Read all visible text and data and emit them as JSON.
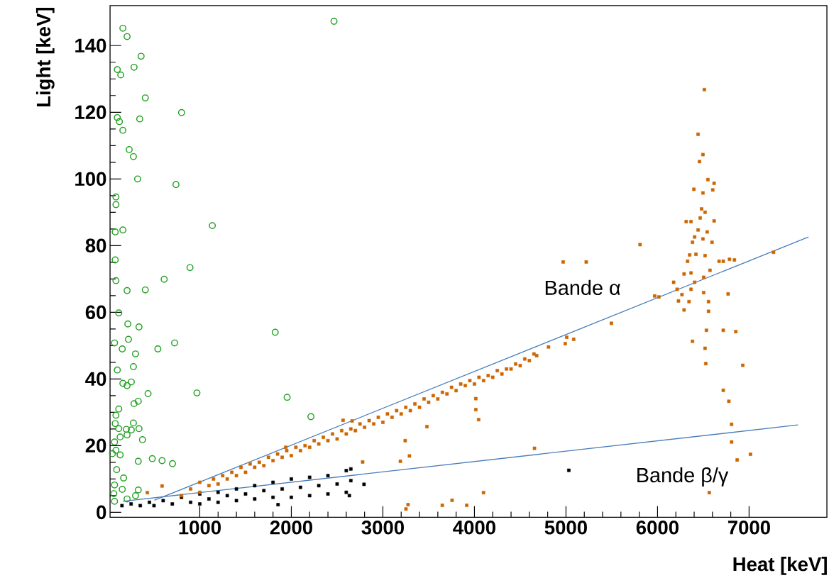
{
  "chart_data": {
    "type": "scatter",
    "xlabel": "Heat [keV]",
    "ylabel": "Light [keV]",
    "xlim": [
      20,
      7850
    ],
    "ylim": [
      -1.5,
      152
    ],
    "xticks": [
      1000,
      2000,
      3000,
      4000,
      5000,
      6000,
      7000
    ],
    "yticks": [
      0,
      20,
      40,
      60,
      80,
      100,
      120,
      140
    ],
    "annotations": [
      "Bande α",
      "Bande β/γ"
    ],
    "series": [
      {
        "marker": "square",
        "color": "#000000",
        "x": [
          150,
          250,
          350,
          450,
          500,
          600,
          700,
          800,
          900,
          1000,
          1000,
          1100,
          1200,
          1200,
          1300,
          1400,
          1400,
          1500,
          1600,
          1600,
          1700,
          1800,
          1800,
          1900,
          2000,
          2000,
          2100,
          2200,
          2200,
          2300,
          2400,
          2400,
          2500,
          2600,
          2600,
          2650,
          2650,
          5031,
          2794,
          2634,
          1855
        ],
        "values": [
          2,
          2.5,
          2,
          3,
          2,
          3.5,
          2.5,
          4.5,
          3,
          5.5,
          2.5,
          4,
          6,
          3,
          5,
          7,
          3.5,
          5.5,
          8,
          4,
          6.5,
          9,
          4.5,
          7,
          10,
          4.5,
          7.5,
          10.5,
          5,
          8,
          11,
          5.5,
          8.5,
          12.5,
          6,
          9.5,
          13,
          12.6,
          8.4,
          5,
          2.3
        ]
      },
      {
        "marker": "square",
        "color": "#cc6600",
        "x": [
          800,
          900,
          1000,
          1000,
          1100,
          1150,
          1200,
          1250,
          1300,
          1350,
          1400,
          1450,
          1500,
          1550,
          1600,
          1650,
          1700,
          1750,
          1800,
          1850,
          1900,
          1950,
          2000,
          2050,
          2100,
          2150,
          2200,
          2250,
          2300,
          2350,
          2400,
          2450,
          2500,
          2550,
          2600,
          2650,
          2700,
          2750,
          2800,
          2850,
          2900,
          2950,
          3000,
          3050,
          3100,
          3150,
          3200,
          3250,
          3300,
          3350,
          3400,
          3450,
          3500,
          3550,
          3600,
          3650,
          3700,
          3750,
          3800,
          3850,
          3900,
          3950,
          4000,
          4050,
          4100,
          4150,
          4200,
          4250,
          4300,
          4350,
          4400,
          4450,
          4500,
          4550,
          4600,
          4650,
          4680,
          6511,
          6443,
          6496,
          6458,
          6550,
          6618,
          6397,
          6603,
          6496,
          6481,
          6519,
          6466,
          6618,
          6313,
          6443,
          6542,
          6405,
          6496,
          6595,
          5809,
          6382,
          6351,
          6420,
          6519,
          6786,
          6672,
          6328,
          6573,
          6290,
          6366,
          6504,
          6176,
          6405,
          6214,
          6366,
          6504,
          6771,
          5969,
          6267,
          6229,
          6344,
          6557,
          6290,
          6557,
          6534,
          6718,
          6855,
          6382,
          6519,
          6527,
          6931,
          6718,
          6779,
          6809,
          6809,
          6870,
          7015,
          6565,
          7267,
          6840,
          6718,
          4969,
          5221,
          5496,
          6015,
          6366,
          5008,
          5084,
          4992,
          4809,
          4046,
          4015,
          4015,
          3481,
          3244,
          4656,
          4099,
          3916,
          3756,
          3649,
          3252,
          588,
          427,
          3275,
          3191,
          3290,
          2779,
          2565,
          2664,
          1939
        ],
        "values": [
          5,
          7,
          6,
          9,
          8,
          10,
          8.5,
          11,
          10,
          12,
          11,
          13.5,
          12,
          14.5,
          13.5,
          15,
          14,
          16.5,
          15.5,
          17.5,
          16.5,
          18.5,
          17,
          19.5,
          18.5,
          20,
          19.5,
          21.5,
          20.5,
          22.5,
          21.5,
          23.5,
          22,
          24.5,
          23.5,
          25,
          24.5,
          26.5,
          25.5,
          27.5,
          26.5,
          28.5,
          27,
          29.5,
          28.5,
          30.5,
          29.5,
          31.5,
          30.5,
          32.5,
          31.5,
          34,
          33,
          35,
          34,
          36,
          35.5,
          37.5,
          36.5,
          38.5,
          38,
          39.5,
          38.5,
          40.5,
          39.5,
          41,
          40.5,
          42.5,
          41.5,
          43,
          43,
          44.5,
          44,
          46,
          45.5,
          47.5,
          47,
          126.8,
          113.4,
          107.3,
          105.2,
          99.8,
          98.7,
          96.9,
          96.7,
          95.8,
          91,
          90,
          88.3,
          87.4,
          87.2,
          84.7,
          84.1,
          82.6,
          82,
          81,
          80.3,
          81,
          77.2,
          77.4,
          77,
          75.9,
          75.3,
          75.3,
          72.6,
          71.5,
          71.8,
          70.5,
          69,
          69,
          66.9,
          66.9,
          65.9,
          65.5,
          64.9,
          65.3,
          63.4,
          63.2,
          63.2,
          60.7,
          60.3,
          54.6,
          54.6,
          54.2,
          51.3,
          49.2,
          44.6,
          44.1,
          36.6,
          33.3,
          26.4,
          21.1,
          15.7,
          17.4,
          5.9,
          78,
          75.7,
          75.3,
          75.1,
          75.1,
          56.7,
          64.6,
          87.2,
          52.5,
          51.9,
          50.6,
          49.6,
          27.8,
          30.8,
          34.1,
          25.7,
          21.5,
          19.2,
          5.9,
          2.1,
          3.6,
          2.1,
          1,
          7.9,
          5.9,
          2.3,
          15.3,
          16.9,
          15.1,
          27.6,
          27.4,
          19.5
        ]
      },
      {
        "marker": "circle",
        "color": "#22a022",
        "x": [
          160,
          206,
          359,
          282,
          99,
          137,
          405,
          801,
          344,
          99,
          122,
          160,
          229,
          275,
          321,
          740,
          84,
          84,
          1137,
          160,
          76,
          893,
          76,
          611,
          84,
          206,
          405,
          2466,
          115,
          214,
          336,
          1824,
          725,
          69,
          221,
          153,
          542,
          298,
          275,
          99,
          160,
          252,
          206,
          435,
          969,
          1954,
          282,
          328,
          115,
          84,
          2214,
          275,
          76,
          115,
          198,
          336,
          252,
          206,
          130,
          374,
          69,
          84,
          130,
          46,
          481,
          328,
          588,
          702,
          92,
          168,
          69,
          153,
          328,
          298,
          61,
          69,
          206
        ],
        "values": [
          145.2,
          142.7,
          136.8,
          133.5,
          132.8,
          131.2,
          124.3,
          119.9,
          118,
          118.4,
          117.2,
          114.6,
          108.8,
          106.7,
          100,
          98.3,
          94.6,
          92.3,
          86,
          84.7,
          84.1,
          73.4,
          75.7,
          69.9,
          69.5,
          66.5,
          66.7,
          147.3,
          59.8,
          56.5,
          55.6,
          54,
          50.8,
          50.8,
          51.9,
          49,
          49,
          47.5,
          43.7,
          42.7,
          38.7,
          39.1,
          38,
          35.6,
          35.8,
          34.5,
          32.6,
          33.3,
          31,
          29.1,
          28.7,
          26.8,
          26.6,
          25.1,
          24.9,
          25.1,
          24.7,
          23.2,
          22.6,
          21.8,
          21.1,
          18.6,
          17.2,
          17.6,
          16.1,
          15.3,
          15.5,
          14.6,
          12.8,
          10.3,
          8.2,
          6.9,
          6.7,
          5,
          5.6,
          3.3,
          4
        ]
      },
      {
        "type": "line",
        "color": "#4a7ebb",
        "x": [
          504,
          7649
        ],
        "values": [
          3.6,
          82.6
        ]
      },
      {
        "type": "line",
        "color": "#4a7ebb",
        "x": [
          160,
          7534
        ],
        "values": [
          3.3,
          26.2
        ]
      }
    ]
  }
}
